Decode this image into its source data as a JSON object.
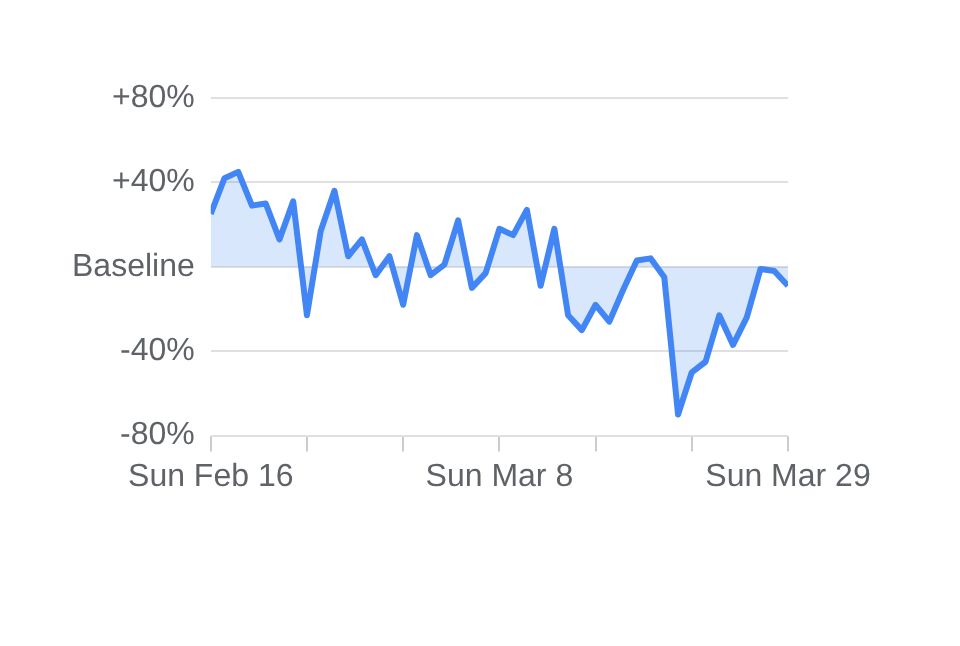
{
  "chart_data": {
    "type": "area",
    "x": [
      "--02-16",
      "--02-17",
      "--02-18",
      "--02-19",
      "--02-20",
      "--02-21",
      "--02-22",
      "--02-23",
      "--02-24",
      "--02-25",
      "--02-26",
      "--02-27",
      "--02-28",
      "--02-29",
      "--03-01",
      "--03-02",
      "--03-03",
      "--03-04",
      "--03-05",
      "--03-06",
      "--03-07",
      "--03-08",
      "--03-09",
      "--03-10",
      "--03-11",
      "--03-12",
      "--03-13",
      "--03-14",
      "--03-15",
      "--03-16",
      "--03-17",
      "--03-18",
      "--03-19",
      "--03-20",
      "--03-21",
      "--03-22",
      "--03-23",
      "--03-24",
      "--03-25",
      "--03-26",
      "--03-27",
      "--03-28",
      "--03-29"
    ],
    "series": [
      {
        "color": "#4285f4",
        "values": [
          25,
          42,
          45,
          29,
          30,
          13,
          31,
          -23,
          17,
          36,
          5,
          13,
          -4,
          5,
          -18,
          15,
          -4,
          1,
          22,
          -10,
          -3,
          18,
          15,
          27,
          -9,
          18,
          -23,
          -30,
          -18,
          -26,
          -11,
          3,
          4,
          -5,
          -70,
          -50,
          -45,
          -23,
          -37,
          -24,
          -1,
          -2,
          -9
        ]
      }
    ],
    "xlim": [
      "--02-16",
      "--03-29"
    ],
    "xticks": [
      {
        "value": "--02-16",
        "label": "Sun Feb 16"
      },
      {
        "value": "--02-23",
        "label": null
      },
      {
        "value": "--03-01",
        "label": null
      },
      {
        "value": "--03-08",
        "label": "Sun Mar 8"
      },
      {
        "value": "--03-15",
        "label": null
      },
      {
        "value": "--03-22",
        "label": null
      },
      {
        "value": "--03-29",
        "label": "Sun Mar 29"
      }
    ],
    "ylim": [
      -80,
      80
    ],
    "yticks": [
      {
        "value": 80,
        "label": "+80%"
      },
      {
        "value": 40,
        "label": "+40%"
      },
      {
        "value": 0,
        "label": "Baseline"
      },
      {
        "value": -40,
        "label": "-40%"
      },
      {
        "value": -80,
        "label": "-80%"
      }
    ],
    "grid": "y",
    "legend": false,
    "marker": "none",
    "line_style": "solid"
  }
}
